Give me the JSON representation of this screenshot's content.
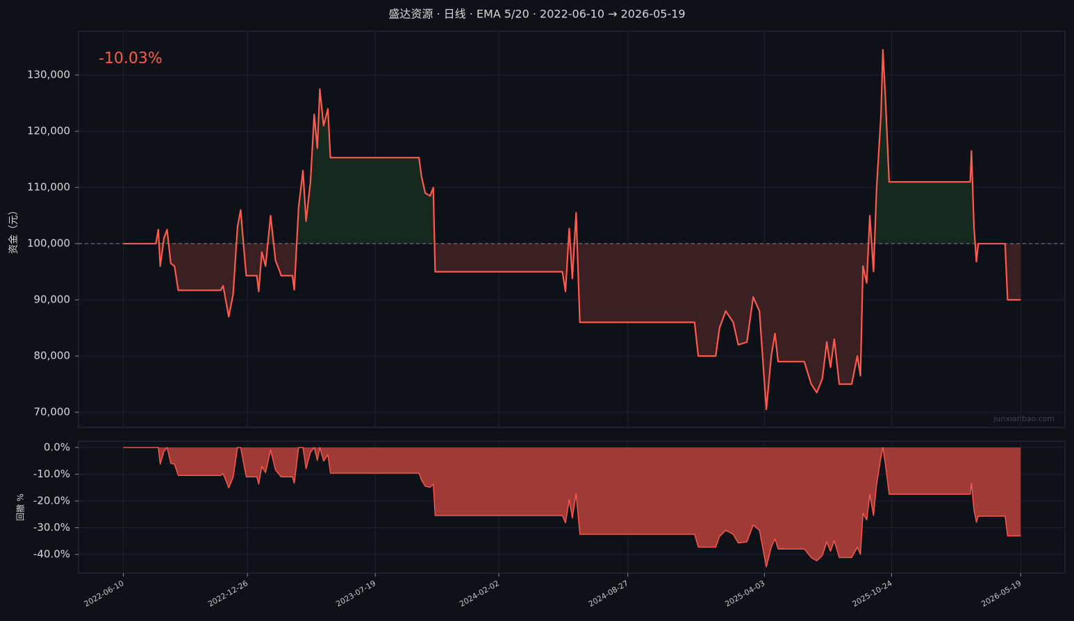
{
  "chart_data": [
    {
      "type": "line",
      "title": "盛达资源 · 日线 · EMA 5/20 · 2022-06-10 → 2026-05-19",
      "ylabel": "资金（元）",
      "annotation": "-10.03%",
      "watermark": "junxianbao.com",
      "baseline": 100000,
      "grid": true,
      "color": "#ff5a4e",
      "above_color": "#16291f",
      "below_color": "#3a1f23",
      "xlim": [
        "2022-03-30",
        "2026-07-29"
      ],
      "ylim": [
        67300,
        137800
      ],
      "yticks": [
        {
          "value": 70000,
          "label": "70,000"
        },
        {
          "value": 80000,
          "label": "80,000"
        },
        {
          "value": 90000,
          "label": "90,000"
        },
        {
          "value": 100000,
          "label": "100,000"
        },
        {
          "value": 110000,
          "label": "110,000"
        },
        {
          "value": 120000,
          "label": "120,000"
        },
        {
          "value": 130000,
          "label": "130,000"
        }
      ],
      "x": [
        "2022-06-10",
        "2022-08-01",
        "2022-08-05",
        "2022-08-08",
        "2022-08-14",
        "2022-08-19",
        "2022-08-25",
        "2022-08-31",
        "2022-09-06",
        "2022-11-13",
        "2022-11-17",
        "2022-11-26",
        "2022-12-03",
        "2022-12-10",
        "2022-12-15",
        "2022-12-21",
        "2022-12-24",
        "2023-01-10",
        "2023-01-13",
        "2023-01-18",
        "2023-01-24",
        "2023-02-01",
        "2023-02-09",
        "2023-02-16",
        "2023-02-18",
        "2023-03-08",
        "2023-03-11",
        "2023-03-18",
        "2023-03-25",
        "2023-03-30",
        "2023-04-06",
        "2023-04-12",
        "2023-04-17",
        "2023-04-21",
        "2023-04-27",
        "2023-05-04",
        "2023-05-08",
        "2023-09-27",
        "2023-10-01",
        "2023-10-07",
        "2023-10-15",
        "2023-10-20",
        "2023-10-23",
        "2024-05-14",
        "2024-05-19",
        "2024-05-25",
        "2024-05-30",
        "2024-06-05",
        "2024-06-11",
        "2024-12-12",
        "2024-12-18",
        "2025-01-15",
        "2025-01-21",
        "2025-01-31",
        "2025-02-12",
        "2025-02-20",
        "2025-03-06",
        "2025-03-16",
        "2025-03-26",
        "2025-04-06",
        "2025-04-14",
        "2025-04-20",
        "2025-04-25",
        "2025-06-06",
        "2025-06-17",
        "2025-06-26",
        "2025-07-05",
        "2025-07-12",
        "2025-07-18",
        "2025-07-24",
        "2025-08-01",
        "2025-08-21",
        "2025-08-30",
        "2025-09-04",
        "2025-09-08",
        "2025-09-14",
        "2025-09-19",
        "2025-09-25",
        "2025-09-30",
        "2025-10-07",
        "2025-10-10",
        "2025-10-14",
        "2025-10-20",
        "2026-02-27",
        "2026-03-01",
        "2026-03-05",
        "2026-03-09",
        "2026-03-12",
        "2026-04-24",
        "2026-04-28",
        "2026-05-19"
      ],
      "values": [
        100000,
        100000,
        102500,
        96000,
        101000,
        102500,
        96500,
        96000,
        91700,
        91700,
        92500,
        87000,
        91000,
        103000,
        106000,
        98000,
        94300,
        94300,
        91500,
        98500,
        96000,
        105000,
        97000,
        95000,
        94300,
        94300,
        91800,
        106500,
        113000,
        104000,
        111000,
        123000,
        117000,
        127500,
        121000,
        124000,
        115300,
        115300,
        112000,
        109000,
        108500,
        110000,
        95000,
        95000,
        91500,
        102700,
        93800,
        105500,
        86000,
        86000,
        80000,
        80000,
        85000,
        88000,
        86000,
        82000,
        82500,
        90500,
        88000,
        70500,
        80000,
        84000,
        79000,
        79000,
        75000,
        73500,
        76000,
        82500,
        78000,
        83000,
        75000,
        75000,
        80000,
        76500,
        96000,
        93000,
        105000,
        95000,
        110000,
        123000,
        134500,
        126000,
        111000,
        111000,
        116500,
        103000,
        96800,
        100000,
        100000,
        90000,
        90000
      ]
    },
    {
      "type": "area",
      "ylabel": "回撤 %",
      "grid": true,
      "color": "#ff5a4e",
      "fill": "#a03a37",
      "xlim": [
        "2022-03-30",
        "2026-07-29"
      ],
      "ylim": [
        -47,
        2.3
      ],
      "yticks": [
        {
          "value": 0,
          "label": "0.0%"
        },
        {
          "value": -10,
          "label": "-10.0%"
        },
        {
          "value": -20,
          "label": "-20.0%"
        },
        {
          "value": -30,
          "label": "-30.0%"
        },
        {
          "value": -40,
          "label": "-40.0%"
        }
      ],
      "xticks": [
        "2022-06-10",
        "2022-12-26",
        "2023-07-19",
        "2024-02-02",
        "2024-08-27",
        "2025-04-03",
        "2025-10-24",
        "2026-05-19"
      ],
      "x": [
        "2022-06-10",
        "2022-08-01",
        "2022-08-05",
        "2022-08-08",
        "2022-08-14",
        "2022-08-19",
        "2022-08-25",
        "2022-08-31",
        "2022-09-06",
        "2022-11-13",
        "2022-11-17",
        "2022-11-26",
        "2022-12-03",
        "2022-12-10",
        "2022-12-15",
        "2022-12-21",
        "2022-12-24",
        "2023-01-10",
        "2023-01-13",
        "2023-01-18",
        "2023-01-24",
        "2023-02-01",
        "2023-02-09",
        "2023-02-16",
        "2023-02-18",
        "2023-03-08",
        "2023-03-11",
        "2023-03-18",
        "2023-03-25",
        "2023-03-30",
        "2023-04-06",
        "2023-04-12",
        "2023-04-17",
        "2023-04-21",
        "2023-04-27",
        "2023-05-04",
        "2023-05-08",
        "2023-09-27",
        "2023-10-01",
        "2023-10-07",
        "2023-10-15",
        "2023-10-20",
        "2023-10-23",
        "2024-05-14",
        "2024-05-19",
        "2024-05-25",
        "2024-05-30",
        "2024-06-05",
        "2024-06-11",
        "2024-12-12",
        "2024-12-18",
        "2025-01-15",
        "2025-01-21",
        "2025-01-31",
        "2025-02-12",
        "2025-02-20",
        "2025-03-06",
        "2025-03-16",
        "2025-03-26",
        "2025-04-06",
        "2025-04-14",
        "2025-04-20",
        "2025-04-25",
        "2025-06-06",
        "2025-06-17",
        "2025-06-26",
        "2025-07-05",
        "2025-07-12",
        "2025-07-18",
        "2025-07-24",
        "2025-08-01",
        "2025-08-21",
        "2025-08-30",
        "2025-09-04",
        "2025-09-08",
        "2025-09-14",
        "2025-09-19",
        "2025-09-25",
        "2025-09-30",
        "2025-10-07",
        "2025-10-10",
        "2025-10-14",
        "2025-10-20",
        "2026-02-27",
        "2026-03-01",
        "2026-03-05",
        "2026-03-09",
        "2026-03-12",
        "2026-04-24",
        "2026-04-28",
        "2026-05-19"
      ],
      "values": [
        0,
        0,
        0,
        -6.3,
        -1.5,
        0,
        -5.9,
        -6.3,
        -10.5,
        -10.5,
        -9.8,
        -15.1,
        -11.2,
        0,
        0,
        -7.5,
        -11.0,
        -11.0,
        -13.7,
        -7.1,
        -9.4,
        -0.9,
        -8.5,
        -10.4,
        -11.0,
        -11.0,
        -13.4,
        0,
        0,
        -8.0,
        -1.8,
        0,
        -4.9,
        0,
        -5.1,
        -2.7,
        -9.6,
        -9.6,
        -12.2,
        -14.5,
        -14.9,
        -13.7,
        -25.5,
        -25.5,
        -28.2,
        -19.5,
        -26.4,
        -17.3,
        -32.5,
        -32.5,
        -37.3,
        -37.3,
        -33.3,
        -31.0,
        -32.5,
        -35.7,
        -35.3,
        -29.0,
        -31.0,
        -44.7,
        -37.3,
        -34.1,
        -38.0,
        -38.0,
        -41.2,
        -42.4,
        -40.4,
        -35.3,
        -38.8,
        -34.9,
        -41.2,
        -41.2,
        -37.3,
        -40.0,
        -24.7,
        -27.1,
        -17.6,
        -25.5,
        -13.7,
        -3.5,
        0,
        -6.3,
        -17.5,
        -17.5,
        -13.4,
        -23.4,
        -28.0,
        -25.7,
        -25.7,
        -33.1,
        -33.1
      ]
    }
  ]
}
